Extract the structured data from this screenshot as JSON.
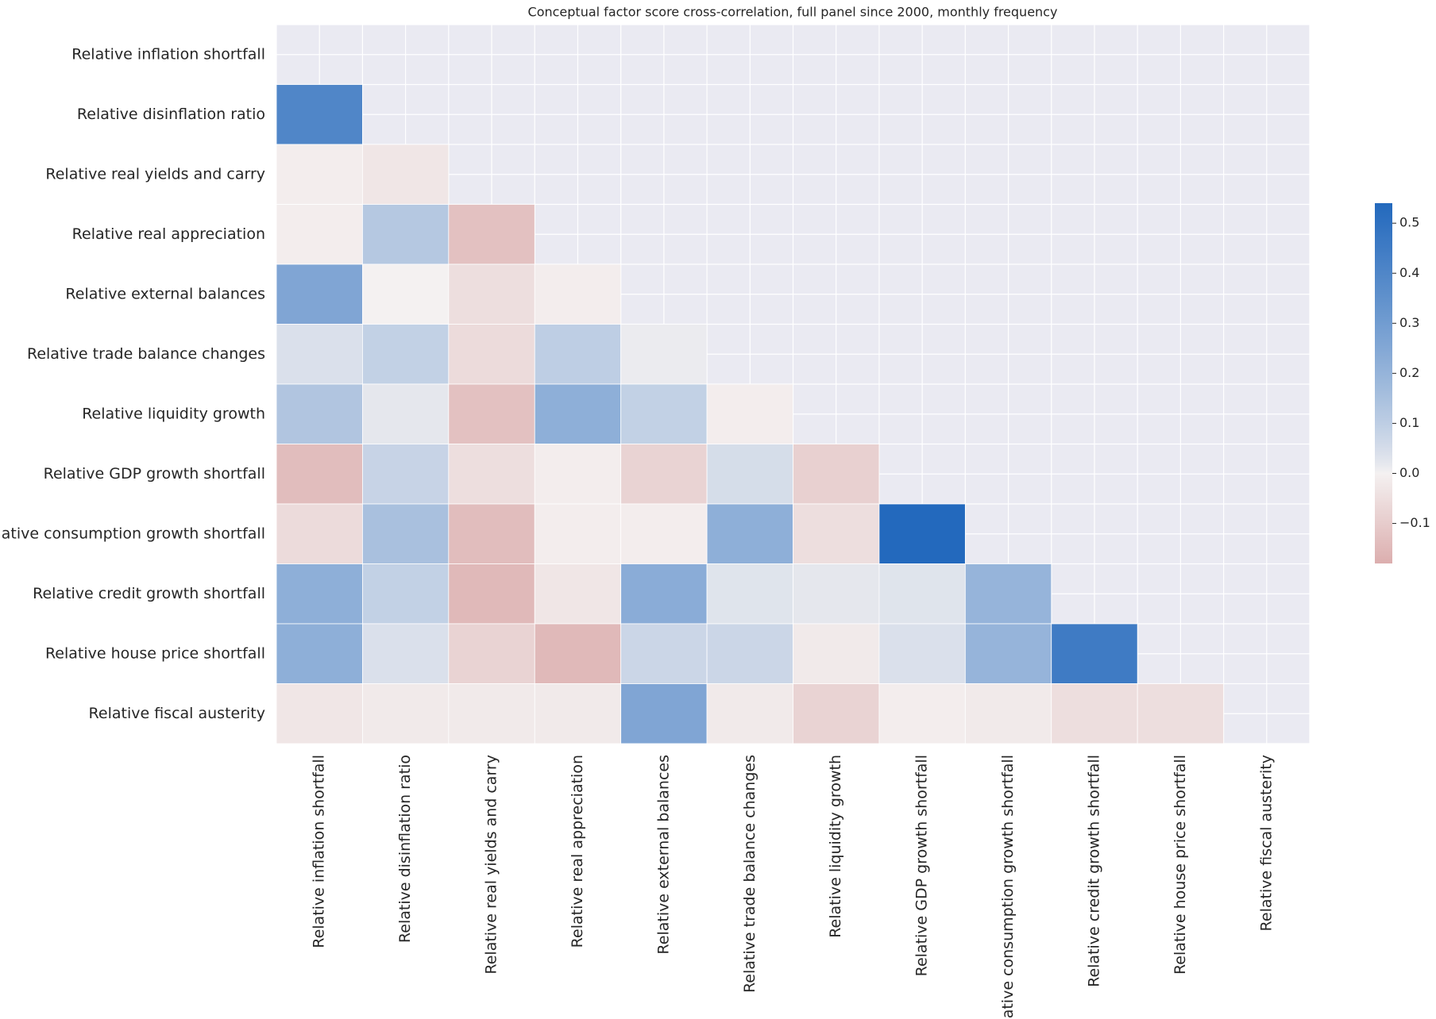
{
  "chart_data": {
    "type": "heatmap",
    "title": "Conceptual factor score cross-correlation, full panel since 2000, monthly frequency",
    "categories": [
      "Relative inflation shortfall",
      "Relative disinflation ratio",
      "Relative real yields and carry",
      "Relative real appreciation",
      "Relative external balances",
      "Relative trade balance changes",
      "Relative liquidity growth",
      "Relative GDP growth shortfall",
      "Relative consumption growth shortfall",
      "Relative credit growth shortfall",
      "Relative house price shortfall",
      "Relative fiscal austerity"
    ],
    "values": [
      [
        null,
        null,
        null,
        null,
        null,
        null,
        null,
        null,
        null,
        null,
        null,
        null
      ],
      [
        0.4,
        null,
        null,
        null,
        null,
        null,
        null,
        null,
        null,
        null,
        null,
        null
      ],
      [
        -0.01,
        -0.03,
        null,
        null,
        null,
        null,
        null,
        null,
        null,
        null,
        null,
        null
      ],
      [
        -0.01,
        0.12,
        -0.13,
        null,
        null,
        null,
        null,
        null,
        null,
        null,
        null,
        null
      ],
      [
        0.26,
        0.0,
        -0.05,
        -0.01,
        null,
        null,
        null,
        null,
        null,
        null,
        null,
        null
      ],
      [
        0.04,
        0.09,
        -0.06,
        0.1,
        0.01,
        null,
        null,
        null,
        null,
        null,
        null,
        null
      ],
      [
        0.13,
        0.02,
        -0.13,
        0.22,
        0.09,
        -0.01,
        null,
        null,
        null,
        null,
        null,
        null
      ],
      [
        -0.14,
        0.08,
        -0.05,
        -0.01,
        -0.08,
        0.05,
        -0.09,
        null,
        null,
        null,
        null,
        null
      ],
      [
        -0.06,
        0.15,
        -0.14,
        -0.01,
        -0.01,
        0.22,
        -0.05,
        0.54,
        null,
        null,
        null,
        null
      ],
      [
        0.22,
        0.09,
        -0.15,
        -0.03,
        0.23,
        0.03,
        0.02,
        0.03,
        0.2,
        null,
        null,
        null
      ],
      [
        0.22,
        0.04,
        -0.08,
        -0.15,
        0.07,
        0.07,
        -0.02,
        0.04,
        0.2,
        0.45,
        null,
        null
      ],
      [
        -0.03,
        -0.02,
        -0.02,
        -0.02,
        0.26,
        -0.02,
        -0.08,
        -0.01,
        -0.02,
        -0.05,
        -0.05,
        null
      ]
    ],
    "clim": [
      -0.18,
      0.54
    ],
    "colorbar_ticks": [
      {
        "value": -0.1,
        "label": "−0.1"
      },
      {
        "value": 0,
        "label": "0.0"
      },
      {
        "value": 0.1,
        "label": "0.1"
      },
      {
        "value": 0.2,
        "label": "0.2"
      },
      {
        "value": 0.3,
        "label": "0.3"
      },
      {
        "value": 0.4,
        "label": "0.4"
      },
      {
        "value": 0.5,
        "label": "0.5"
      }
    ],
    "colors": {
      "low": "#dcaeae",
      "mid": "#f4f1f1",
      "high": "#2369bd"
    },
    "background": "#eaeaf2",
    "grid": true
  }
}
